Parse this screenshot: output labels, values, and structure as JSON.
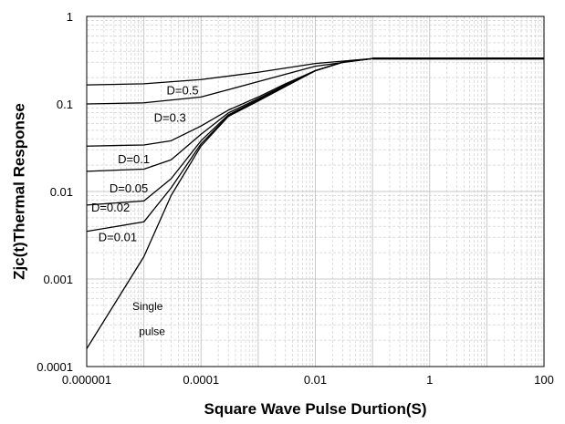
{
  "chart_data": {
    "type": "line",
    "title": "",
    "xlabel": "Square Wave Pulse Durtion(S)",
    "ylabel": "Zjc(t)Thermal Response",
    "x_scale": "log",
    "y_scale": "log",
    "xlim": [
      1e-06,
      100
    ],
    "ylim": [
      0.0001,
      1
    ],
    "x_ticks": [
      1e-06,
      0.0001,
      0.01,
      1,
      100
    ],
    "x_tick_labels": [
      "0.000001",
      "0.0001",
      "0.01",
      "1",
      "100"
    ],
    "y_ticks": [
      0.0001,
      0.001,
      0.01,
      0.1,
      1
    ],
    "y_tick_labels": [
      "0.0001",
      "0.001",
      "0.01",
      "0.1",
      "1"
    ],
    "grid": true,
    "line_color": "#000000",
    "grid_color": "#c8c8c8",
    "series": [
      {
        "name": "D=0.5",
        "x": [
          1e-06,
          1e-05,
          0.0001,
          0.001,
          0.01,
          0.1,
          1,
          100
        ],
        "y": [
          0.165,
          0.17,
          0.19,
          0.23,
          0.29,
          0.33,
          0.33,
          0.33
        ]
      },
      {
        "name": "D=0.3",
        "x": [
          1e-06,
          1e-05,
          0.0001,
          0.001,
          0.01,
          0.1,
          1,
          100
        ],
        "y": [
          0.1,
          0.103,
          0.12,
          0.18,
          0.27,
          0.33,
          0.33,
          0.33
        ]
      },
      {
        "name": "D=0.1",
        "x": [
          1e-06,
          1e-05,
          3e-05,
          0.0001,
          0.0003,
          0.001,
          0.003,
          0.01,
          0.03,
          0.1,
          1,
          100
        ],
        "y": [
          0.033,
          0.034,
          0.038,
          0.056,
          0.085,
          0.12,
          0.17,
          0.24,
          0.3,
          0.33,
          0.33,
          0.33
        ]
      },
      {
        "name": "D=0.05",
        "x": [
          1e-06,
          1e-05,
          3e-05,
          0.0001,
          0.0003,
          0.001,
          0.003,
          0.01,
          0.03,
          0.1,
          1,
          100
        ],
        "y": [
          0.017,
          0.018,
          0.023,
          0.045,
          0.079,
          0.115,
          0.165,
          0.24,
          0.3,
          0.33,
          0.33,
          0.33
        ]
      },
      {
        "name": "D=0.02",
        "x": [
          1e-06,
          1e-05,
          3e-05,
          0.0001,
          0.0003,
          0.001,
          0.003,
          0.01,
          0.03,
          0.1,
          1,
          100
        ],
        "y": [
          0.007,
          0.0078,
          0.014,
          0.038,
          0.075,
          0.112,
          0.162,
          0.24,
          0.3,
          0.33,
          0.33,
          0.33
        ]
      },
      {
        "name": "D=0.01",
        "x": [
          1e-06,
          1e-05,
          3e-05,
          0.0001,
          0.0003,
          0.001,
          0.003,
          0.01,
          0.03,
          0.1,
          1,
          100
        ],
        "y": [
          0.0035,
          0.0045,
          0.011,
          0.035,
          0.073,
          0.11,
          0.16,
          0.24,
          0.3,
          0.33,
          0.33,
          0.33
        ]
      },
      {
        "name": "Single pulse",
        "x": [
          1e-06,
          1e-05,
          3e-05,
          0.0001,
          0.0003,
          0.001,
          0.003,
          0.01,
          0.03,
          0.1,
          1,
          100
        ],
        "y": [
          0.00016,
          0.0018,
          0.009,
          0.033,
          0.072,
          0.108,
          0.158,
          0.24,
          0.3,
          0.33,
          0.33,
          0.33
        ]
      }
    ],
    "annotations": [
      {
        "text": "D=0.5",
        "x": 2.5e-05,
        "y": 0.128
      },
      {
        "text": "D=0.3",
        "x": 1.5e-05,
        "y": 0.063
      },
      {
        "text": "D=0.1",
        "x": 3.5e-06,
        "y": 0.021
      },
      {
        "text": "D=0.05",
        "x": 2.5e-06,
        "y": 0.0098
      },
      {
        "text": "D=0.02",
        "x": 1.2e-06,
        "y": 0.0059
      },
      {
        "text": "D=0.01",
        "x": 1.6e-06,
        "y": 0.0027
      },
      {
        "text": "Single",
        "x": 6.3e-06,
        "y": 0.00044
      },
      {
        "text": "pulse",
        "x": 8.2e-06,
        "y": 0.00023
      }
    ]
  }
}
